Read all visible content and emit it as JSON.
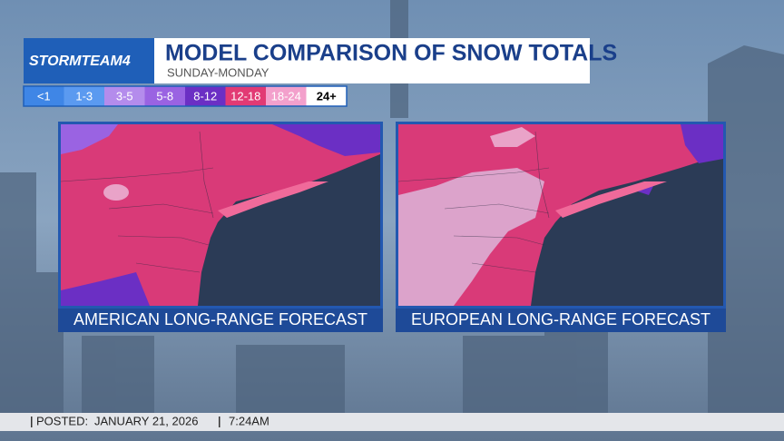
{
  "logo": "STORMTEAM4",
  "header": {
    "title": "MODEL COMPARISON OF SNOW TOTALS",
    "subtitle": "SUNDAY-MONDAY"
  },
  "legend": {
    "items": [
      {
        "label": "<1",
        "color": "#3f86e6"
      },
      {
        "label": "1-3",
        "color": "#5b9af0"
      },
      {
        "label": "3-5",
        "color": "#b48cec"
      },
      {
        "label": "5-8",
        "color": "#9a63e2"
      },
      {
        "label": "8-12",
        "color": "#6b2fc4"
      },
      {
        "label": "12-18",
        "color": "#e23a74"
      },
      {
        "label": "18-24",
        "color": "#f3a0cc"
      },
      {
        "label": "24+",
        "color": "#ffffff"
      }
    ]
  },
  "panels": [
    {
      "caption": "AMERICAN LONG-RANGE FORECAST"
    },
    {
      "caption": "EUROPEAN LONG-RANGE FORECAST"
    }
  ],
  "footer": {
    "posted_label": "POSTED:",
    "date": "JANUARY 21, 2026",
    "time": "7:24AM"
  }
}
